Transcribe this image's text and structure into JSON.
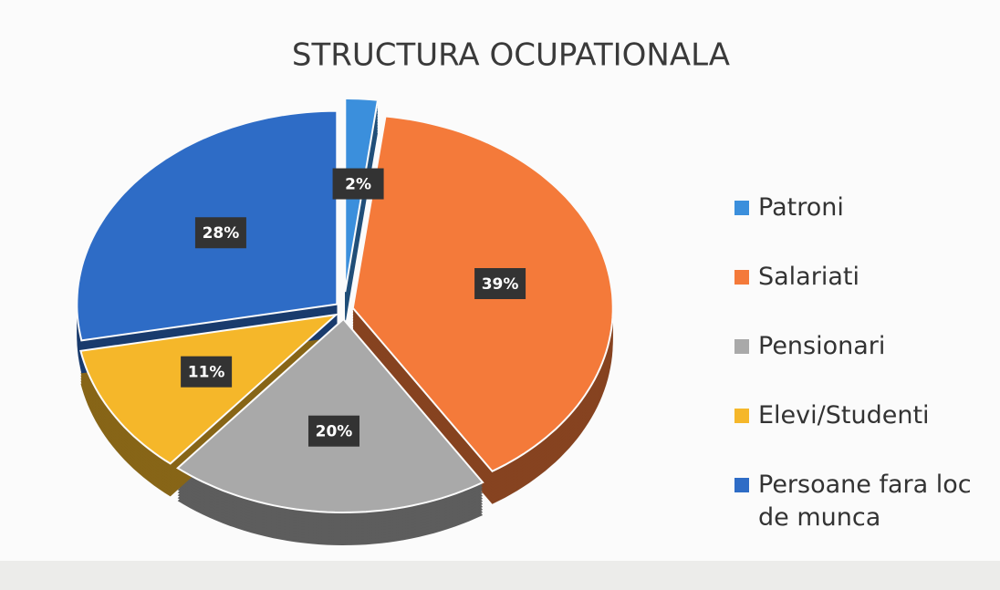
{
  "chart_data": {
    "type": "pie",
    "title": "STRUCTURA OCUPATIONALA",
    "categories": [
      "Patroni",
      "Salariati",
      "Pensionari",
      "Elevi/Studenti",
      "Persoane fara loc de munca"
    ],
    "values": [
      2,
      39,
      20,
      11,
      28
    ],
    "value_labels": [
      "2%",
      "39%",
      "20%",
      "11%",
      "28%"
    ],
    "colors": [
      "#3b8fdc",
      "#f47a3a",
      "#a9a9a9",
      "#f5b72a",
      "#2e6cc6"
    ],
    "legend": "right"
  }
}
